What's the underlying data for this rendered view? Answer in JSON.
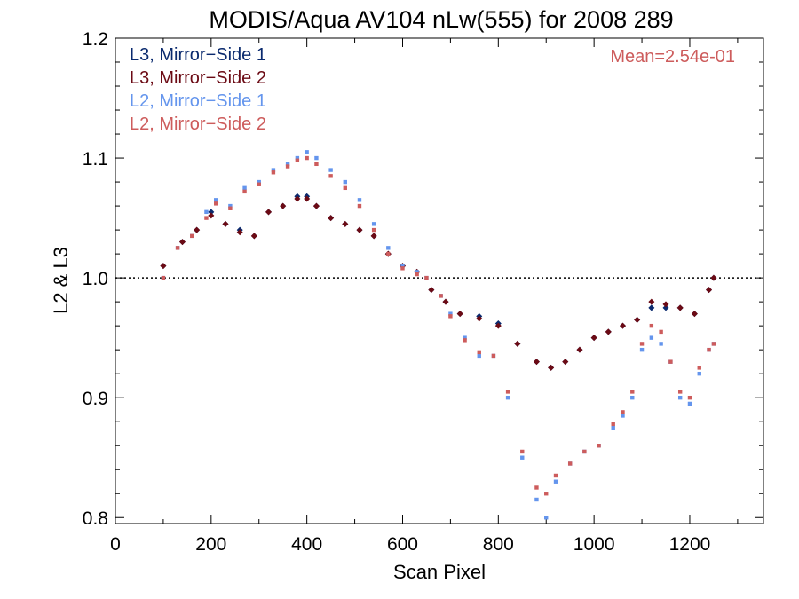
{
  "chart_data": {
    "type": "scatter",
    "title": "MODIS/Aqua AV104 nLw(555) for 2008 289",
    "xlabel": "Scan Pixel",
    "ylabel": "L2 & L3",
    "xlim": [
      0,
      1354
    ],
    "ylim": [
      0.795,
      1.2
    ],
    "x_ticks": [
      "0",
      "200",
      "400",
      "600",
      "800",
      "1000",
      "1200"
    ],
    "y_ticks": [
      "0.8",
      "0.9",
      "1.0",
      "1.1",
      "1.2"
    ],
    "reference_line": 1.0,
    "annotation": "Mean=2.54e-01",
    "annotation_color": "#cd5c5c",
    "legend_position": "top-left",
    "grid": false,
    "series": [
      {
        "name": "L3, Mirror−Side 1",
        "color": "#0a2a6e",
        "marker": "diamond",
        "points": [
          [
            100,
            1.01
          ],
          [
            140,
            1.03
          ],
          [
            170,
            1.04
          ],
          [
            200,
            1.055
          ],
          [
            230,
            1.045
          ],
          [
            260,
            1.04
          ],
          [
            290,
            1.035
          ],
          [
            320,
            1.055
          ],
          [
            350,
            1.06
          ],
          [
            380,
            1.068
          ],
          [
            400,
            1.068
          ],
          [
            420,
            1.06
          ],
          [
            450,
            1.05
          ],
          [
            480,
            1.045
          ],
          [
            510,
            1.04
          ],
          [
            540,
            1.035
          ],
          [
            570,
            1.02
          ],
          [
            600,
            1.01
          ],
          [
            630,
            1.005
          ],
          [
            660,
            0.99
          ],
          [
            690,
            0.98
          ],
          [
            720,
            0.97
          ],
          [
            760,
            0.968
          ],
          [
            800,
            0.962
          ],
          [
            840,
            0.945
          ],
          [
            880,
            0.93
          ],
          [
            910,
            0.925
          ],
          [
            940,
            0.93
          ],
          [
            970,
            0.94
          ],
          [
            1000,
            0.95
          ],
          [
            1030,
            0.955
          ],
          [
            1060,
            0.96
          ],
          [
            1090,
            0.965
          ],
          [
            1120,
            0.975
          ],
          [
            1150,
            0.975
          ],
          [
            1180,
            0.975
          ],
          [
            1210,
            0.97
          ],
          [
            1240,
            0.99
          ],
          [
            1250,
            1.0
          ]
        ]
      },
      {
        "name": "L3, Mirror−Side 2",
        "color": "#6b0a14",
        "marker": "diamond",
        "points": [
          [
            100,
            1.01
          ],
          [
            140,
            1.03
          ],
          [
            170,
            1.04
          ],
          [
            200,
            1.052
          ],
          [
            230,
            1.045
          ],
          [
            260,
            1.038
          ],
          [
            290,
            1.035
          ],
          [
            320,
            1.055
          ],
          [
            350,
            1.06
          ],
          [
            380,
            1.066
          ],
          [
            400,
            1.066
          ],
          [
            420,
            1.06
          ],
          [
            450,
            1.05
          ],
          [
            480,
            1.045
          ],
          [
            510,
            1.04
          ],
          [
            540,
            1.035
          ],
          [
            570,
            1.02
          ],
          [
            600,
            1.01
          ],
          [
            630,
            1.005
          ],
          [
            660,
            0.99
          ],
          [
            690,
            0.98
          ],
          [
            720,
            0.97
          ],
          [
            760,
            0.966
          ],
          [
            800,
            0.96
          ],
          [
            840,
            0.945
          ],
          [
            880,
            0.93
          ],
          [
            910,
            0.925
          ],
          [
            940,
            0.93
          ],
          [
            970,
            0.94
          ],
          [
            1000,
            0.95
          ],
          [
            1030,
            0.955
          ],
          [
            1060,
            0.96
          ],
          [
            1090,
            0.965
          ],
          [
            1120,
            0.98
          ],
          [
            1150,
            0.978
          ],
          [
            1180,
            0.975
          ],
          [
            1210,
            0.97
          ],
          [
            1240,
            0.99
          ],
          [
            1250,
            1.0
          ]
        ]
      },
      {
        "name": "L2, Mirror−Side 1",
        "color": "#6495ed",
        "marker": "square",
        "points": [
          [
            100,
            1.0
          ],
          [
            130,
            1.025
          ],
          [
            160,
            1.035
          ],
          [
            190,
            1.055
          ],
          [
            210,
            1.065
          ],
          [
            240,
            1.06
          ],
          [
            270,
            1.075
          ],
          [
            300,
            1.08
          ],
          [
            330,
            1.09
          ],
          [
            360,
            1.095
          ],
          [
            380,
            1.1
          ],
          [
            400,
            1.105
          ],
          [
            420,
            1.1
          ],
          [
            450,
            1.09
          ],
          [
            480,
            1.08
          ],
          [
            510,
            1.065
          ],
          [
            540,
            1.045
          ],
          [
            570,
            1.025
          ],
          [
            600,
            1.01
          ],
          [
            630,
            1.005
          ],
          [
            650,
            1.0
          ],
          [
            680,
            0.985
          ],
          [
            700,
            0.97
          ],
          [
            730,
            0.95
          ],
          [
            760,
            0.935
          ],
          [
            790,
            0.935
          ],
          [
            820,
            0.9
          ],
          [
            850,
            0.85
          ],
          [
            880,
            0.815
          ],
          [
            900,
            0.8
          ],
          [
            920,
            0.83
          ],
          [
            950,
            0.845
          ],
          [
            980,
            0.855
          ],
          [
            1010,
            0.86
          ],
          [
            1040,
            0.875
          ],
          [
            1060,
            0.885
          ],
          [
            1080,
            0.9
          ],
          [
            1100,
            0.94
          ],
          [
            1120,
            0.95
          ],
          [
            1140,
            0.945
          ],
          [
            1160,
            0.93
          ],
          [
            1180,
            0.9
          ],
          [
            1200,
            0.895
          ],
          [
            1220,
            0.92
          ],
          [
            1240,
            0.94
          ],
          [
            1250,
            0.945
          ]
        ]
      },
      {
        "name": "L2, Mirror−Side 2",
        "color": "#cd5c5c",
        "marker": "square",
        "points": [
          [
            100,
            1.0
          ],
          [
            130,
            1.025
          ],
          [
            160,
            1.035
          ],
          [
            190,
            1.05
          ],
          [
            210,
            1.062
          ],
          [
            240,
            1.058
          ],
          [
            270,
            1.072
          ],
          [
            300,
            1.078
          ],
          [
            330,
            1.088
          ],
          [
            360,
            1.093
          ],
          [
            380,
            1.098
          ],
          [
            400,
            1.1
          ],
          [
            420,
            1.095
          ],
          [
            450,
            1.085
          ],
          [
            480,
            1.075
          ],
          [
            510,
            1.06
          ],
          [
            540,
            1.04
          ],
          [
            570,
            1.02
          ],
          [
            600,
            1.008
          ],
          [
            630,
            1.003
          ],
          [
            650,
            1.0
          ],
          [
            680,
            0.985
          ],
          [
            700,
            0.968
          ],
          [
            730,
            0.948
          ],
          [
            760,
            0.938
          ],
          [
            790,
            0.935
          ],
          [
            820,
            0.905
          ],
          [
            850,
            0.855
          ],
          [
            880,
            0.825
          ],
          [
            900,
            0.82
          ],
          [
            920,
            0.835
          ],
          [
            950,
            0.845
          ],
          [
            980,
            0.855
          ],
          [
            1010,
            0.86
          ],
          [
            1040,
            0.878
          ],
          [
            1060,
            0.888
          ],
          [
            1080,
            0.905
          ],
          [
            1100,
            0.945
          ],
          [
            1120,
            0.96
          ],
          [
            1140,
            0.955
          ],
          [
            1160,
            0.93
          ],
          [
            1180,
            0.905
          ],
          [
            1200,
            0.9
          ],
          [
            1220,
            0.925
          ],
          [
            1240,
            0.94
          ],
          [
            1250,
            0.945
          ]
        ]
      }
    ]
  }
}
